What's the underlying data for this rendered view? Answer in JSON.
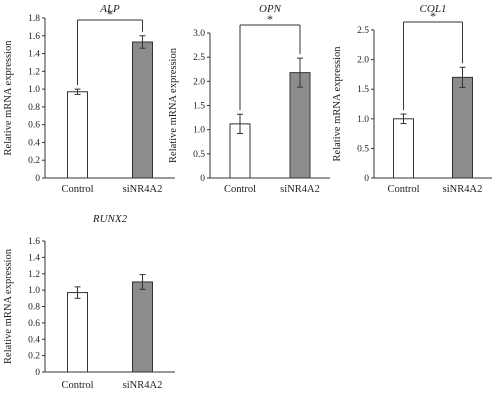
{
  "chart_data": [
    {
      "type": "bar",
      "title": "ALP",
      "ylabel": "Relative mRNA expression",
      "categories": [
        "Control",
        "siNR4A2"
      ],
      "values": [
        0.97,
        1.53
      ],
      "errors": [
        0.03,
        0.07
      ],
      "ylim": [
        0,
        1.8
      ],
      "yticks": [
        "0",
        "0.2",
        "0.4",
        "0.6",
        "0.8",
        "1.0",
        "1.2",
        "1.4",
        "1.6",
        "1.8"
      ],
      "bar_colors": [
        "#ffffff",
        "#8c8c8c"
      ],
      "significance": "*"
    },
    {
      "type": "bar",
      "title": "OPN",
      "ylabel": "Relative mRNA expression",
      "categories": [
        "Control",
        "siNR4A2"
      ],
      "values": [
        1.12,
        2.18
      ],
      "errors": [
        0.2,
        0.3
      ],
      "ylim": [
        0,
        3.0
      ],
      "yticks": [
        "0",
        "0.5",
        "1.0",
        "1.5",
        "2.0",
        "2.5",
        "3.0"
      ],
      "bar_colors": [
        "#ffffff",
        "#8c8c8c"
      ],
      "significance": "*"
    },
    {
      "type": "bar",
      "title": "COL1",
      "ylabel": "Relative mRNA expression",
      "categories": [
        "Control",
        "siNR4A2"
      ],
      "values": [
        1.0,
        1.7
      ],
      "errors": [
        0.08,
        0.17
      ],
      "ylim": [
        0,
        2.5
      ],
      "yticks": [
        "0",
        "0.5",
        "1.0",
        "1.5",
        "2.0",
        "2.5"
      ],
      "bar_colors": [
        "#ffffff",
        "#8c8c8c"
      ],
      "significance": "*"
    },
    {
      "type": "bar",
      "title": "RUNX2",
      "ylabel": "Relative mRNA expression",
      "categories": [
        "Control",
        "siNR4A2"
      ],
      "values": [
        0.97,
        1.1
      ],
      "errors": [
        0.07,
        0.09
      ],
      "ylim": [
        0,
        1.6
      ],
      "yticks": [
        "0",
        "0.2",
        "0.4",
        "0.6",
        "0.8",
        "1.0",
        "1.2",
        "1.4",
        "1.6"
      ],
      "bar_colors": [
        "#ffffff",
        "#8c8c8c"
      ],
      "significance": ""
    }
  ]
}
